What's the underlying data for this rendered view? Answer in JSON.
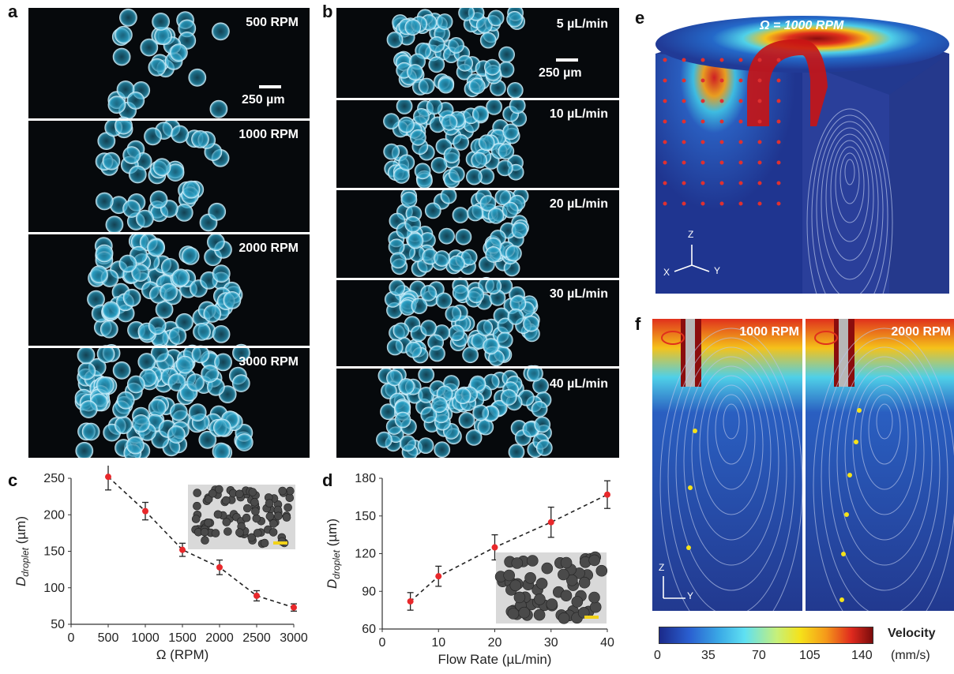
{
  "panels": {
    "a": {
      "letter": "a",
      "strips": [
        "500 RPM",
        "1000 RPM",
        "2000 RPM",
        "3000 RPM"
      ],
      "scale": "250 µm"
    },
    "b": {
      "letter": "b",
      "strips": [
        "5 µL/min",
        "10 µL/min",
        "20 µL/min",
        "30 µL/min",
        "40 µL/min"
      ],
      "scale": "250 µm"
    },
    "c": {
      "letter": "c"
    },
    "d": {
      "letter": "d"
    },
    "e": {
      "letter": "e",
      "omega": "Ω = 1000 RPM",
      "axes": {
        "z": "Z",
        "x": "X",
        "y": "Y"
      }
    },
    "f": {
      "letter": "f",
      "left": "1000 RPM",
      "right": "2000 RPM",
      "axes": {
        "z": "Z",
        "y": "Y"
      }
    },
    "colorbar": {
      "title": "Velocity",
      "unit": "(mm/s)",
      "ticks": [
        "0",
        "35",
        "70",
        "105",
        "140"
      ]
    }
  },
  "chart_data": [
    {
      "type": "scatter",
      "panel": "c",
      "x": [
        500,
        1000,
        1500,
        2000,
        2500,
        3000
      ],
      "y": [
        252,
        205,
        152,
        128,
        89,
        73
      ],
      "yerr": [
        18,
        12,
        9,
        10,
        7,
        5
      ],
      "xlabel": "Ω (RPM)",
      "ylabel_main": "D",
      "ylabel_sub": "droplet",
      "ylabel_unit": " (µm)",
      "xlim": [
        0,
        3000
      ],
      "ylim": [
        50,
        250
      ],
      "xticks": [
        "0",
        "500",
        "1000",
        "1500",
        "2000",
        "2500",
        "3000"
      ],
      "yticks": [
        "50",
        "100",
        "150",
        "200",
        "250"
      ],
      "trendline": "dashed",
      "marker_color": "#e8282b"
    },
    {
      "type": "scatter",
      "panel": "d",
      "x": [
        5,
        10,
        20,
        30,
        40
      ],
      "y": [
        82,
        102,
        125,
        145,
        167
      ],
      "yerr": [
        7,
        8,
        10,
        12,
        11
      ],
      "xlabel": "Flow Rate (µL/min)",
      "ylabel_main": "D",
      "ylabel_sub": "droplet",
      "ylabel_unit": " (µm)",
      "xlim": [
        0,
        40
      ],
      "ylim": [
        60,
        180
      ],
      "xticks": [
        "0",
        "10",
        "20",
        "30",
        "40"
      ],
      "yticks": [
        "60",
        "90",
        "120",
        "150",
        "180"
      ],
      "trendline": "dashed",
      "marker_color": "#e8282b"
    }
  ]
}
